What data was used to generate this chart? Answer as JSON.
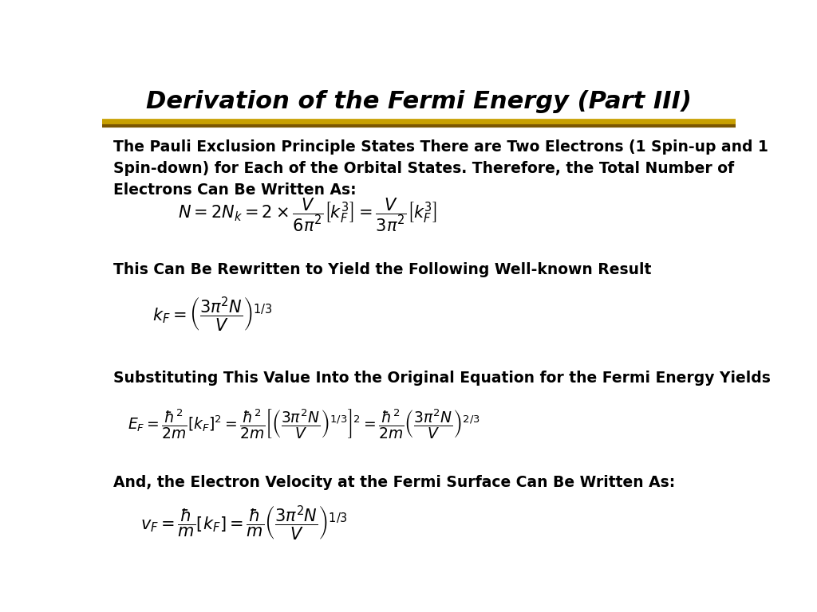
{
  "title": "Derivation of the Fermi Energy (Part III)",
  "bg_color": "#ffffff",
  "title_color": "#000000",
  "text_color": "#000000",
  "paragraph1": "The Pauli Exclusion Principle States There are Two Electrons (1 Spin-up and 1\nSpin-down) for Each of the Orbital States. Therefore, the Total Number of\nElectrons Can Be Written As:",
  "eq1": "$N = 2N_k = 2 \\times \\dfrac{V}{6\\pi^2}\\left[k_F^3\\right] = \\dfrac{V}{3\\pi^2}\\left[k_F^3\\right]$",
  "paragraph2": "This Can Be Rewritten to Yield the Following Well-known Result",
  "eq2": "$k_F = \\left(\\dfrac{3\\pi^2 N}{V}\\right)^{1/3}$",
  "paragraph3": "Substituting This Value Into the Original Equation for the Fermi Energy Yields",
  "eq3": "$E_F = \\dfrac{\\hbar^2}{2m}\\left[k_F\\right]^2 = \\dfrac{\\hbar^2}{2m}\\left[\\left(\\dfrac{3\\pi^2 N}{V}\\right)^{1/3}\\right]^2 = \\dfrac{\\hbar^2}{2m}\\left(\\dfrac{3\\pi^2 N}{V}\\right)^{2/3}$",
  "paragraph4": "And, the Electron Velocity at the Fermi Surface Can Be Written As:",
  "eq4": "$v_F = \\dfrac{\\hbar}{m}\\left[k_F\\right] = \\dfrac{\\hbar}{m}\\left(\\dfrac{3\\pi^2 N}{V}\\right)^{1/3}$",
  "sep_color_top": "#c8a000",
  "sep_color_bot": "#7a5500"
}
